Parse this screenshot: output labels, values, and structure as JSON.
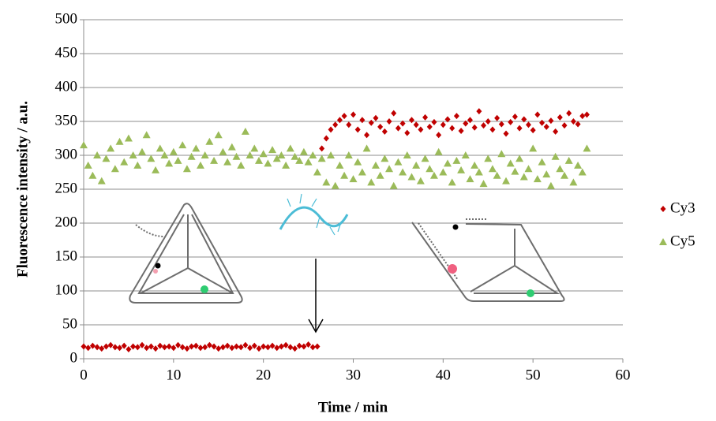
{
  "chart_data": {
    "type": "scatter",
    "x_label": "Time / min",
    "y_label": "Fluorescence intensity / a.u.",
    "xlim": [
      0,
      60
    ],
    "xticks": [
      0,
      10,
      20,
      30,
      40,
      50,
      60
    ],
    "ylim": [
      0,
      500
    ],
    "yticks": [
      0,
      50,
      100,
      150,
      200,
      250,
      300,
      350,
      400,
      450,
      500
    ],
    "grid": true,
    "legend": "right",
    "x": [
      0,
      0.5,
      1,
      1.5,
      2,
      2.5,
      3,
      3.5,
      4,
      4.5,
      5,
      5.5,
      6,
      6.5,
      7,
      7.5,
      8,
      8.5,
      9,
      9.5,
      10,
      10.5,
      11,
      11.5,
      12,
      12.5,
      13,
      13.5,
      14,
      14.5,
      15,
      15.5,
      16,
      16.5,
      17,
      17.5,
      18,
      18.5,
      19,
      19.5,
      20,
      20.5,
      21,
      21.5,
      22,
      22.5,
      23,
      23.5,
      24,
      24.5,
      25,
      25.5,
      26,
      26.5,
      27,
      27.5,
      28,
      28.5,
      29,
      29.5,
      30,
      30.5,
      31,
      31.5,
      32,
      32.5,
      33,
      33.5,
      34,
      34.5,
      35,
      35.5,
      36,
      36.5,
      37,
      37.5,
      38,
      38.5,
      39,
      39.5,
      40,
      40.5,
      41,
      41.5,
      42,
      42.5,
      43,
      43.5,
      44,
      44.5,
      45,
      45.5,
      46,
      46.5,
      47,
      47.5,
      48,
      48.5,
      49,
      49.5,
      50,
      50.5,
      51,
      51.5,
      52,
      52.5,
      53,
      53.5,
      54,
      54.5,
      55,
      55.5,
      56
    ],
    "series": [
      {
        "name": "Cy3",
        "color": "#c00000",
        "marker": "diamond",
        "values": [
          18,
          16,
          19,
          17,
          15,
          18,
          20,
          17,
          16,
          19,
          14,
          18,
          17,
          20,
          16,
          18,
          15,
          19,
          17,
          18,
          16,
          20,
          17,
          15,
          18,
          19,
          16,
          17,
          20,
          18,
          15,
          17,
          19,
          16,
          18,
          17,
          20,
          16,
          19,
          15,
          18,
          17,
          19,
          16,
          18,
          20,
          17,
          15,
          19,
          18,
          21,
          17,
          18,
          310,
          325,
          338,
          345,
          352,
          358,
          345,
          360,
          338,
          352,
          330,
          348,
          355,
          342,
          335,
          350,
          362,
          340,
          347,
          333,
          352,
          345,
          338,
          356,
          342,
          349,
          330,
          345,
          353,
          340,
          358,
          336,
          347,
          352,
          341,
          365,
          344,
          350,
          338,
          355,
          346,
          332,
          349,
          357,
          340,
          353,
          345,
          337,
          360,
          348,
          342,
          351,
          335,
          356,
          344,
          362,
          350,
          346,
          358,
          360
        ]
      },
      {
        "name": "Cy5",
        "color": "#9bbb59",
        "marker": "triangle",
        "values": [
          315,
          285,
          270,
          300,
          262,
          295,
          310,
          280,
          320,
          290,
          325,
          300,
          285,
          305,
          330,
          295,
          278,
          310,
          300,
          288,
          305,
          292,
          315,
          280,
          298,
          310,
          285,
          300,
          320,
          292,
          330,
          305,
          290,
          312,
          298,
          285,
          335,
          300,
          310,
          292,
          302,
          288,
          308,
          295,
          300,
          285,
          310,
          298,
          292,
          305,
          290,
          300,
          275,
          295,
          260,
          300,
          255,
          285,
          270,
          300,
          265,
          290,
          275,
          310,
          260,
          285,
          270,
          295,
          280,
          255,
          290,
          275,
          300,
          268,
          285,
          262,
          295,
          280,
          270,
          305,
          275,
          288,
          260,
          292,
          278,
          300,
          265,
          285,
          275,
          258,
          295,
          280,
          270,
          302,
          262,
          288,
          276,
          295,
          268,
          280,
          310,
          265,
          290,
          272,
          255,
          298,
          280,
          270,
          292,
          260,
          285,
          275,
          310
        ]
      }
    ]
  }
}
